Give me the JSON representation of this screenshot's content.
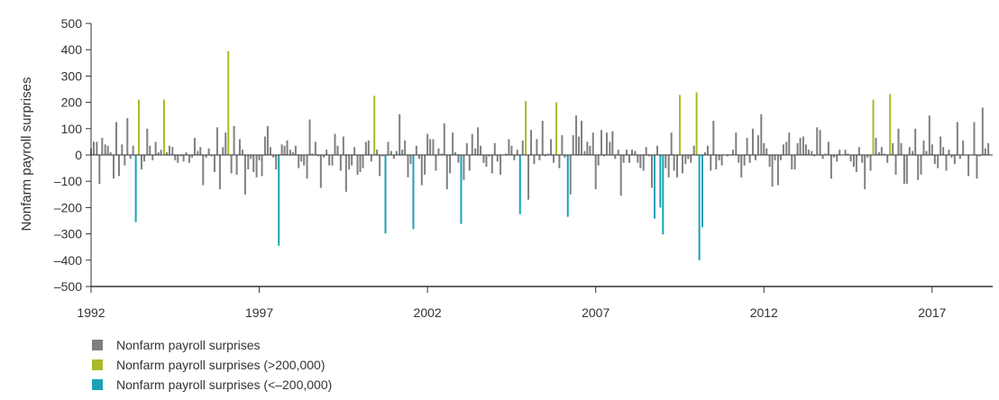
{
  "chart_data": {
    "type": "bar",
    "ylabel": "Nonfarm payroll surprises",
    "xlabel": "",
    "ylim": [
      -500,
      500
    ],
    "yticks": [
      500,
      400,
      300,
      200,
      100,
      0,
      -100,
      -200,
      -300,
      -400,
      -500
    ],
    "xlim": [
      1992,
      2018.8
    ],
    "xticks": [
      1992,
      1997,
      2002,
      2007,
      2012,
      2017
    ],
    "grid": false,
    "legend_position": "bottom-left",
    "series": [
      {
        "name": "Nonfarm payroll surprises",
        "color": "#808080",
        "x": [],
        "values": []
      },
      {
        "name": "Nonfarm payroll surprises (>200,000)",
        "color": "#a9bb2b",
        "x": [],
        "values": []
      },
      {
        "name": "Nonfarm payroll surprises (<–200,000)",
        "color": "#1aa3b4",
        "x": [],
        "values": []
      }
    ]
  }
}
